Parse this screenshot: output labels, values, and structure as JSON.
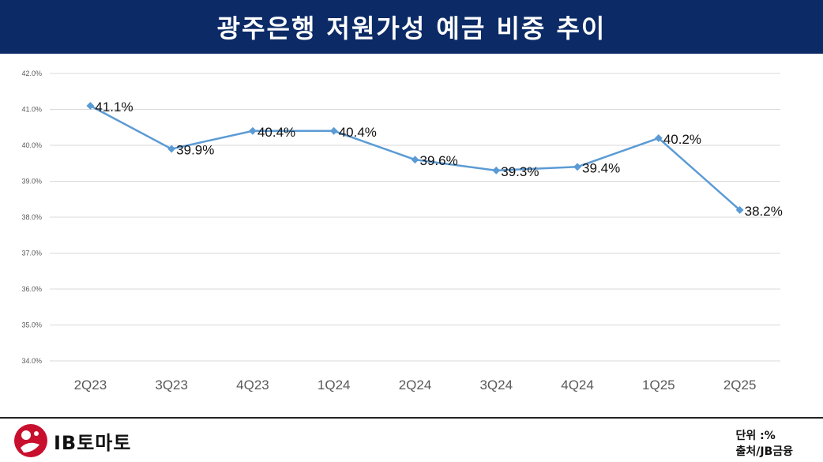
{
  "header": {
    "title": "광주은행 저원가성 예금 비중 추이"
  },
  "chart_data": {
    "type": "line",
    "categories": [
      "2Q23",
      "3Q23",
      "4Q23",
      "1Q24",
      "2Q24",
      "3Q24",
      "4Q24",
      "1Q25",
      "2Q25"
    ],
    "series": [
      {
        "values": [
          41.1,
          39.9,
          40.4,
          40.4,
          39.6,
          39.3,
          39.4,
          40.2,
          38.2
        ]
      }
    ],
    "data_labels": [
      "41.1%",
      "39.9%",
      "40.4%",
      "40.4%",
      "39.6%",
      "39.3%",
      "39.4%",
      "40.2%",
      "38.2%"
    ],
    "yticks": [
      "34.0%",
      "35.0%",
      "36.0%",
      "37.0%",
      "38.0%",
      "39.0%",
      "40.0%",
      "41.0%",
      "42.0%"
    ],
    "ylim": [
      34,
      42
    ],
    "grid": true,
    "legend": "none",
    "line_color": "#5b9bd5",
    "grid_color": "#d9d9d9"
  },
  "footer": {
    "logo_text": "IB토마토",
    "unit": "단위 :%",
    "source": "출처/JB금융"
  },
  "colors": {
    "header_bg": "#0b2a66",
    "logo_red": "#c8102e"
  }
}
